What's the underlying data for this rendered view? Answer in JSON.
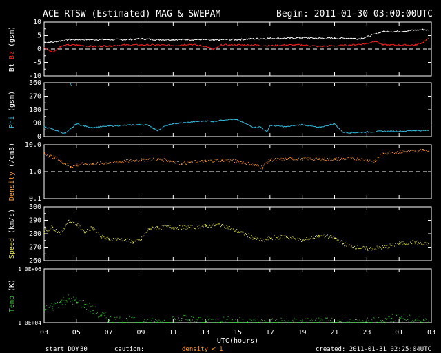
{
  "header": {
    "title": "ACE RTSW (Estimated) MAG & SWEPAM",
    "begin": "Begin: 2011-01-30 03:00:00UTC"
  },
  "footer": {
    "start_doy_label": "start DOY:",
    "start_doy_value": "30",
    "caution_label": "caution:",
    "caution_note": "density < 1",
    "created": "created: 2011-01-31 02:25:04UTC"
  },
  "colors": {
    "bt": "#ffffff",
    "bz": "#ff2020",
    "phi": "#33bbdd",
    "density": "#ff9933",
    "speed": "#e8e84a",
    "temp": "#33cc33",
    "axis": "#ffffff",
    "background": "#000000"
  },
  "chart_data": {
    "type": "line",
    "xlabel": "UTC(hours)",
    "x_unit": "hours since 03 UTC",
    "xlim": [
      0,
      24
    ],
    "x_ticks": [
      0,
      2,
      4,
      6,
      8,
      10,
      12,
      14,
      16,
      18,
      20,
      22,
      24
    ],
    "x_tick_labels": [
      "03",
      "05",
      "07",
      "09",
      "11",
      "13",
      "15",
      "17",
      "19",
      "21",
      "23",
      "01",
      "03"
    ],
    "panels": [
      {
        "id": "mag",
        "ylabel_parts": [
          {
            "text": "Bt",
            "color_key": "bt"
          },
          {
            "text": " Bz",
            "color_key": "bz"
          },
          {
            "text": " (gsm)",
            "color_key": "bt"
          }
        ],
        "ylim": [
          -10,
          10
        ],
        "y_ticks": [
          -10,
          -5,
          0,
          5,
          10
        ],
        "y_tick_labels": [
          "-10",
          "-5",
          "0",
          "5",
          "10"
        ],
        "dashed_ref": 0,
        "series": [
          {
            "name": "Bt",
            "color_key": "bt",
            "style": "line",
            "x": [
              0,
              0.5,
              1,
              1.5,
              2,
              3,
              4,
              5,
              6,
              7,
              8,
              9,
              10,
              10.5,
              11,
              12,
              13,
              14,
              15,
              16,
              17,
              18,
              19,
              19.5,
              20,
              21,
              22,
              23,
              23.5,
              23.8
            ],
            "y": [
              2.5,
              2.5,
              3,
              3.5,
              3.5,
              3.5,
              3.5,
              3.5,
              3.8,
              3.5,
              3.5,
              3.5,
              3.5,
              3.2,
              3.5,
              3.5,
              3.8,
              4,
              4,
              4.2,
              4,
              4,
              4,
              3.8,
              4.5,
              6.5,
              6.5,
              7,
              7.2,
              7
            ]
          },
          {
            "name": "Bz",
            "color_key": "bz",
            "style": "line",
            "x": [
              0,
              0.3,
              0.6,
              1,
              1.5,
              2,
              3,
              4,
              5,
              6,
              7,
              8,
              9,
              10,
              10.5,
              11,
              12,
              13,
              14,
              15,
              16,
              17,
              18,
              19,
              20,
              20.5,
              21,
              22,
              23,
              23.5,
              23.8
            ],
            "y": [
              0.5,
              -0.5,
              -1,
              1,
              1.5,
              1.5,
              1,
              1.2,
              1.5,
              1.5,
              1.5,
              1.3,
              1.8,
              1,
              -0.2,
              1.5,
              1.5,
              1.5,
              1.2,
              1.5,
              1.5,
              1,
              1.2,
              1.5,
              2,
              3,
              1.5,
              1.5,
              1.5,
              2.5,
              4
            ]
          }
        ]
      },
      {
        "id": "phi",
        "ylabel_parts": [
          {
            "text": "Phi",
            "color_key": "phi"
          },
          {
            "text": " (gsm)",
            "color_key": "bt"
          }
        ],
        "ylim": [
          0,
          360
        ],
        "y_ticks": [
          0,
          90,
          180,
          270,
          360
        ],
        "y_tick_labels": [
          "0",
          "90",
          "180",
          "270",
          "360"
        ],
        "series": [
          {
            "name": "Phi",
            "color_key": "phi",
            "style": "line",
            "x": [
              0,
              0.5,
              1,
              1.3,
              1.6,
              2,
              2.5,
              3,
              4,
              5,
              6,
              6.5,
              7,
              7.5,
              8,
              9,
              10,
              10.5,
              11,
              11.5,
              12,
              13,
              13.4,
              13.8,
              14,
              14.5,
              15,
              16,
              17,
              18,
              18.5,
              19,
              20,
              21,
              22,
              23,
              23.5,
              23.8
            ],
            "y": [
              65,
              50,
              30,
              20,
              45,
              85,
              70,
              60,
              70,
              75,
              80,
              75,
              40,
              70,
              85,
              95,
              105,
              100,
              110,
              115,
              110,
              60,
              65,
              30,
              75,
              70,
              65,
              80,
              60,
              85,
              30,
              25,
              30,
              35,
              35,
              40,
              40,
              40
            ]
          },
          {
            "name": "Phi outlier",
            "color_key": "phi",
            "style": "points",
            "x": [
              1.6,
              1.65
            ],
            "y": [
              355,
              345
            ]
          }
        ]
      },
      {
        "id": "density",
        "ylabel_parts": [
          {
            "text": "Density",
            "color_key": "density"
          },
          {
            "text": " (/cm3)",
            "color_key": "bt"
          }
        ],
        "ylim": [
          0.1,
          10
        ],
        "log": true,
        "y_ticks": [
          0.1,
          1,
          10
        ],
        "y_tick_labels": [
          "0.1",
          "1.0",
          "10.0"
        ],
        "dashed_ref": 1,
        "series": [
          {
            "name": "Density",
            "color_key": "density",
            "style": "points",
            "x": [
              0,
              0.3,
              0.6,
              1,
              1.3,
              1.6,
              2,
              2.5,
              3,
              4,
              5,
              6,
              7,
              8,
              8.5,
              9,
              10,
              11,
              12,
              13,
              13.5,
              14,
              15,
              16,
              17,
              18,
              19,
              20,
              20.5,
              21,
              22,
              23,
              23.5,
              23.8
            ],
            "y": [
              5,
              4,
              3.5,
              2.5,
              2,
              1.6,
              1.8,
              2,
              2,
              2.2,
              2.5,
              2.8,
              3,
              2.5,
              2,
              2.3,
              2.5,
              2.8,
              2.5,
              1.8,
              1.5,
              2.8,
              3,
              3.2,
              3,
              3,
              3.2,
              2.8,
              2.5,
              5,
              5.5,
              6,
              6.5,
              6
            ]
          }
        ]
      },
      {
        "id": "speed",
        "ylabel_parts": [
          {
            "text": "Speed",
            "color_key": "speed"
          },
          {
            "text": " (km/s)",
            "color_key": "bt"
          }
        ],
        "ylim": [
          260,
          300
        ],
        "y_ticks": [
          260,
          270,
          280,
          290,
          300
        ],
        "y_tick_labels": [
          "260",
          "270",
          "280",
          "290",
          "300"
        ],
        "series": [
          {
            "name": "Speed",
            "color_key": "speed",
            "style": "points",
            "x": [
              0,
              0.5,
              1,
              1.5,
              2,
              2.5,
              3,
              3.5,
              4,
              5,
              5.5,
              6,
              6.5,
              7,
              8,
              9,
              10,
              11,
              12,
              13,
              13.5,
              14,
              15,
              16,
              17,
              18,
              18.5,
              19,
              20,
              21,
              22,
              23,
              23.5,
              23.8
            ],
            "y": [
              282,
              285,
              280,
              290,
              287,
              282,
              285,
              278,
              276,
              276,
              274,
              276,
              284,
              285,
              285,
              285,
              286,
              287,
              282,
              277,
              275,
              277,
              278,
              275,
              279,
              277,
              273,
              271,
              269,
              270,
              273,
              274,
              272,
              273
            ]
          }
        ]
      },
      {
        "id": "temp",
        "ylabel_parts": [
          {
            "text": "Temp",
            "color_key": "temp"
          },
          {
            "text": " (K)",
            "color_key": "bt"
          }
        ],
        "ylim": [
          10000,
          1000000
        ],
        "log": true,
        "y_ticks": [
          10000,
          1000000
        ],
        "y_tick_labels": [
          "1.0E+04",
          "1.0E+06"
        ],
        "series": [
          {
            "name": "Temp",
            "color_key": "temp",
            "style": "points",
            "x": [
              0,
              0.5,
              1,
              1.5,
              2,
              2.5,
              3,
              3.5,
              4,
              6,
              7,
              8,
              8.5,
              9,
              10,
              11,
              12,
              13,
              14,
              15,
              16,
              17,
              18,
              19,
              20,
              21,
              21.5,
              22,
              22.5,
              23,
              23.5,
              23.8
            ],
            "y": [
              30000,
              40000,
              60000,
              80000,
              60000,
              50000,
              30000,
              20000,
              13000,
              10500,
              10500,
              12000,
              15000,
              13000,
              11000,
              12000,
              11000,
              10500,
              10500,
              10500,
              10500,
              10500,
              10500,
              10500,
              10500,
              12000,
              15000,
              16000,
              14000,
              13000,
              12500,
              12000
            ]
          }
        ]
      }
    ]
  }
}
